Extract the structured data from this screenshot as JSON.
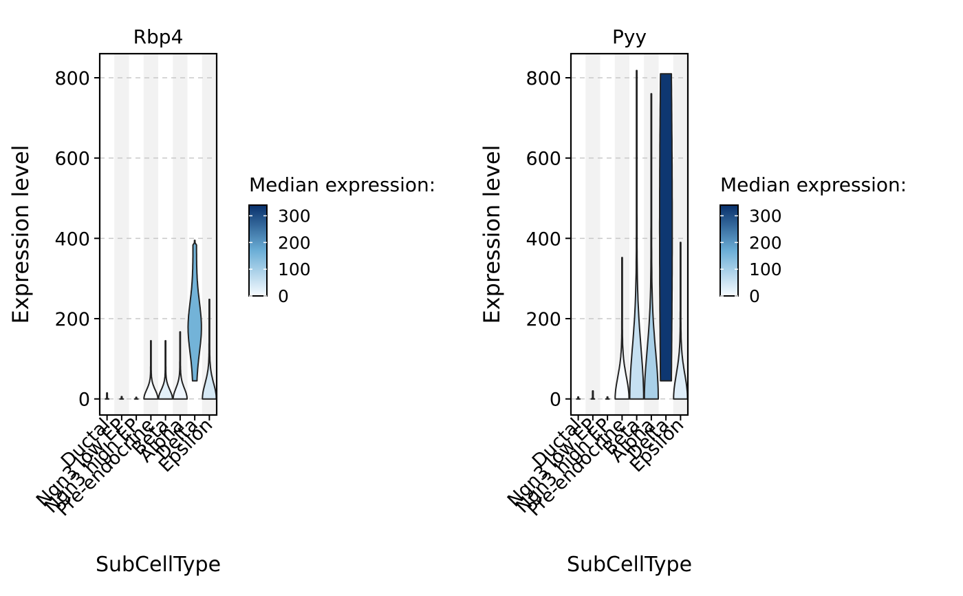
{
  "legend_title": "Median expression:",
  "colorscale": {
    "low": "#f7fbff",
    "mid": "#6baed6",
    "high": "#08306b",
    "min": 0,
    "max": 340
  },
  "chart_data": [
    {
      "type": "violin",
      "title": "Rbp4",
      "xlabel": "SubCellType",
      "ylabel": "Expression level",
      "ylim": [
        -40,
        860
      ],
      "yticks": [
        0,
        200,
        400,
        600,
        800
      ],
      "grid": "horizontal dashed",
      "categories": [
        "Ductal",
        "Ngn3 low EP",
        "Ngn3 high EP",
        "Pre-endocrine",
        "Beta",
        "Alpha",
        "Delta",
        "Epsilon"
      ],
      "series": [
        {
          "category": "Ductal",
          "min": 0,
          "max": 15,
          "median": 0,
          "shape": "flat"
        },
        {
          "category": "Ngn3 low EP",
          "min": 0,
          "max": 6,
          "median": 0,
          "shape": "flat"
        },
        {
          "category": "Ngn3 high EP",
          "min": 0,
          "max": 4,
          "median": 0,
          "shape": "flat"
        },
        {
          "category": "Pre-endocrine",
          "min": 0,
          "max": 145,
          "median": 0,
          "shape": "bottom"
        },
        {
          "category": "Beta",
          "min": 0,
          "max": 145,
          "median": 25,
          "shape": "bottom"
        },
        {
          "category": "Alpha",
          "min": 0,
          "max": 167,
          "median": 10,
          "shape": "bottom"
        },
        {
          "category": "Delta",
          "min": 45,
          "max": 395,
          "median": 160,
          "shape": "mid"
        },
        {
          "category": "Epsilon",
          "min": 0,
          "max": 248,
          "median": 40,
          "shape": "bottom"
        }
      ],
      "legend": {
        "title": "Median expression:",
        "ticks": [
          0,
          100,
          200,
          300
        ],
        "position": "right"
      }
    },
    {
      "type": "violin",
      "title": "Pyy",
      "xlabel": "SubCellType",
      "ylabel": "Expression level",
      "ylim": [
        -40,
        860
      ],
      "yticks": [
        0,
        200,
        400,
        600,
        800
      ],
      "grid": "horizontal dashed",
      "categories": [
        "Ductal",
        "Ngn3 low EP",
        "Ngn3 high EP",
        "Pre-endocrine",
        "Beta",
        "Alpha",
        "Delta",
        "Epsilon"
      ],
      "series": [
        {
          "category": "Ductal",
          "min": 0,
          "max": 5,
          "median": 0,
          "shape": "flat"
        },
        {
          "category": "Ngn3 low EP",
          "min": 0,
          "max": 20,
          "median": 0,
          "shape": "flat"
        },
        {
          "category": "Ngn3 high EP",
          "min": 0,
          "max": 5,
          "median": 0,
          "shape": "flat"
        },
        {
          "category": "Pre-endocrine",
          "min": 0,
          "max": 352,
          "median": 0,
          "shape": "bottom"
        },
        {
          "category": "Beta",
          "min": 0,
          "max": 818,
          "median": 60,
          "shape": "bottom"
        },
        {
          "category": "Alpha",
          "min": 0,
          "max": 760,
          "median": 95,
          "shape": "bottom"
        },
        {
          "category": "Delta",
          "min": 45,
          "max": 810,
          "median": 330,
          "shape": "block"
        },
        {
          "category": "Epsilon",
          "min": 0,
          "max": 390,
          "median": 30,
          "shape": "bottom"
        }
      ],
      "legend": {
        "title": "Median expression:",
        "ticks": [
          0,
          100,
          200,
          300
        ],
        "position": "right"
      }
    }
  ]
}
